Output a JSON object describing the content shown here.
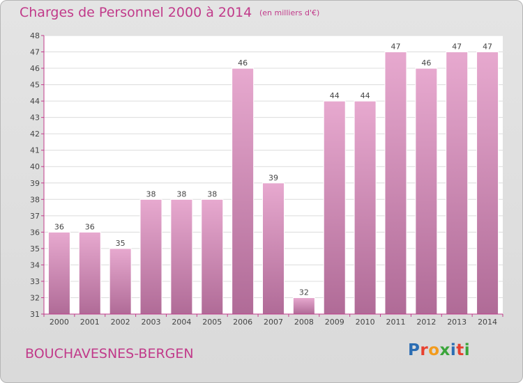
{
  "header": {
    "title": "Charges de Personnel 2000 à 2014",
    "unit": "(en milliers d'€)"
  },
  "footer": {
    "commune": "BOUCHAVESNES-BERGEN",
    "logo": "Proxiti",
    "logo_colors": [
      "#2b6db3",
      "#e8402f",
      "#f29b1d",
      "#3aa53a",
      "#2b6db3",
      "#e8402f",
      "#3aa53a"
    ]
  },
  "chart_data": {
    "type": "bar",
    "categories": [
      "2000",
      "2001",
      "2002",
      "2003",
      "2004",
      "2005",
      "2006",
      "2007",
      "2008",
      "2009",
      "2010",
      "2011",
      "2012",
      "2013",
      "2014"
    ],
    "values": [
      36,
      36,
      35,
      38,
      38,
      38,
      46,
      39,
      32,
      44,
      44,
      47,
      46,
      47,
      47
    ],
    "ylim": [
      31,
      48
    ],
    "yticks": [
      31,
      32,
      33,
      34,
      35,
      36,
      37,
      38,
      39,
      40,
      41,
      42,
      43,
      44,
      45,
      46,
      47,
      48
    ],
    "grid": true,
    "bar_color_top": "#e7a9cf",
    "bar_color_bottom": "#b06b97",
    "axis_color": "#c13a8a"
  }
}
